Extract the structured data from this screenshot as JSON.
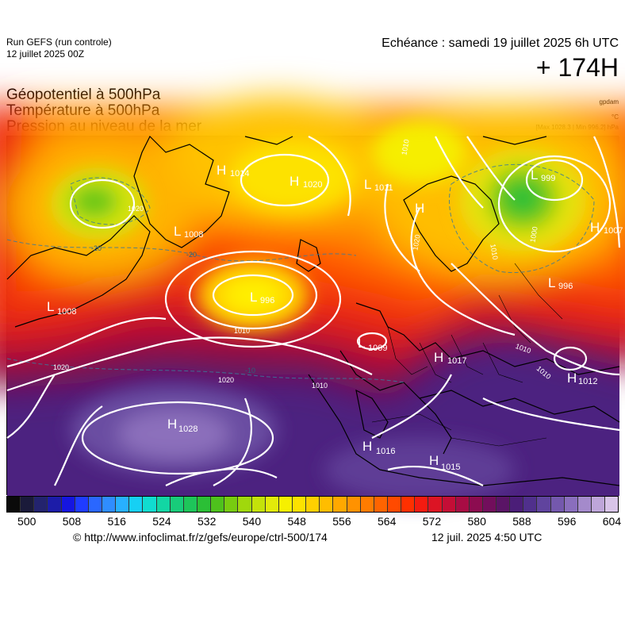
{
  "header": {
    "run_title": "Run GEFS (run controle)",
    "run_date": "12 juillet 2025 00Z",
    "echeance": "Echéance : samedi 19 juillet 2025 6h UTC",
    "lead_time": "+ 174H"
  },
  "variables": [
    "Géopotentiel à 500hPa",
    "Température à 500hPa",
    "Pression au niveau de la mer"
  ],
  "units": {
    "geopotential": "gpdam",
    "temperature": "°C",
    "pressure_range": "[Max 1028.3 | Min 996.2] hPa"
  },
  "pressure_centers": [
    {
      "type": "H",
      "value": "1014"
    },
    {
      "type": "H",
      "value": "1020"
    },
    {
      "type": "L",
      "value": "1011"
    },
    {
      "type": "H",
      "value": ""
    },
    {
      "type": "L",
      "value": "999"
    },
    {
      "type": "H",
      "value": "1007"
    },
    {
      "type": "L",
      "value": "1008"
    },
    {
      "type": "L",
      "value": "996"
    },
    {
      "type": "L",
      "value": "996"
    },
    {
      "type": "L",
      "value": "1008"
    },
    {
      "type": "L",
      "value": "1009"
    },
    {
      "type": "H",
      "value": "1017"
    },
    {
      "type": "H",
      "value": "1012"
    },
    {
      "type": "H",
      "value": "1028"
    },
    {
      "type": "H",
      "value": "1016"
    },
    {
      "type": "H",
      "value": "1015"
    }
  ],
  "isobar_labels": [
    "1020",
    "1010",
    "1020",
    "1020",
    "1010",
    "1020",
    "1010",
    "1000",
    "1010",
    "1010",
    "1010"
  ],
  "isotherm_labels": [
    "-20",
    "-20",
    "-10"
  ],
  "colorbar": {
    "colors": [
      "#0a0a0a",
      "#1a1a3a",
      "#23236e",
      "#1c1ca8",
      "#1515e0",
      "#1f3cff",
      "#2a67ff",
      "#2f8dff",
      "#28b0ff",
      "#16d0f4",
      "#10dcd0",
      "#12d6a4",
      "#18cc7a",
      "#1ec55a",
      "#2bbf36",
      "#4ec21c",
      "#78cc10",
      "#a0d80c",
      "#c4e20a",
      "#e2ea0a",
      "#f6f000",
      "#fde200",
      "#ffd000",
      "#ffbd00",
      "#ffa800",
      "#ff9200",
      "#ff7c00",
      "#ff6400",
      "#ff4a00",
      "#ff3000",
      "#f41b10",
      "#dc1424",
      "#c40e36",
      "#a80c44",
      "#8c0c50",
      "#720e5c",
      "#5a1466",
      "#4b1e78",
      "#50308c",
      "#60449e",
      "#7458ad",
      "#8a6ebd",
      "#a48acb",
      "#bea6d9",
      "#d8c4e8"
    ],
    "ticks": [
      "500",
      "508",
      "516",
      "524",
      "532",
      "540",
      "548",
      "556",
      "564",
      "572",
      "580",
      "588",
      "596",
      "604"
    ]
  },
  "footer": {
    "credit": "© http://www.infoclimat.fr/z/gefs/europe/ctrl-500/174",
    "generated": "12 juil. 2025  4:50 UTC"
  }
}
